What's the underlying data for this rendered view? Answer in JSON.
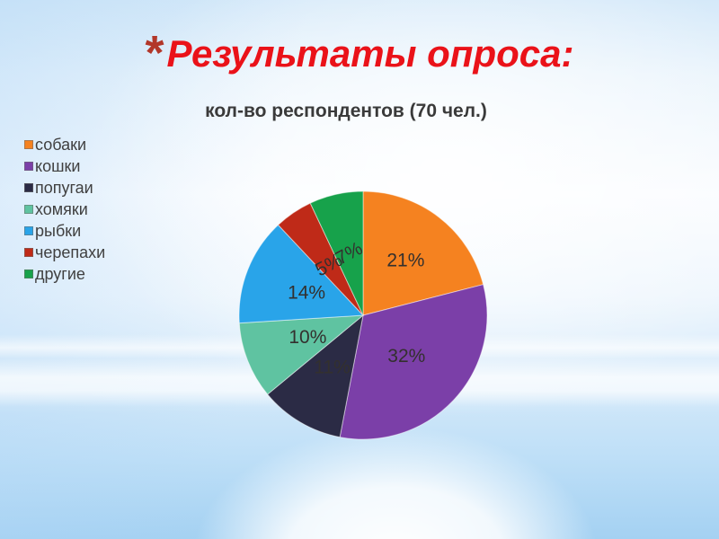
{
  "slide": {
    "bullet": "*",
    "title": "Результаты опроса:"
  },
  "chart_data": {
    "type": "pie",
    "title": "кол-во респондентов (70 чел.)",
    "total_respondents": 70,
    "categories": [
      "собаки",
      "кошки",
      "попугаи",
      "хомяки",
      "рыбки",
      "черепахи",
      "другие"
    ],
    "values": [
      21,
      32,
      11,
      10,
      14,
      5,
      7
    ],
    "value_unit": "%",
    "colors": [
      "#f58220",
      "#7b3fa8",
      "#2b2b45",
      "#5fc3a1",
      "#29a4e9",
      "#bf2a18",
      "#17a24b"
    ],
    "legend_position": "left",
    "labels_shown": "percent-inside",
    "start_angle_deg": 0,
    "direction": "clockwise"
  },
  "theme": {
    "background_tint": "#bedff7",
    "title_color": "#ea1219",
    "bullet_color": "#b2372a",
    "chart_title_color": "#3a3a3a",
    "slice_label_color": "#33302e",
    "legend_text_color": "#404040"
  }
}
